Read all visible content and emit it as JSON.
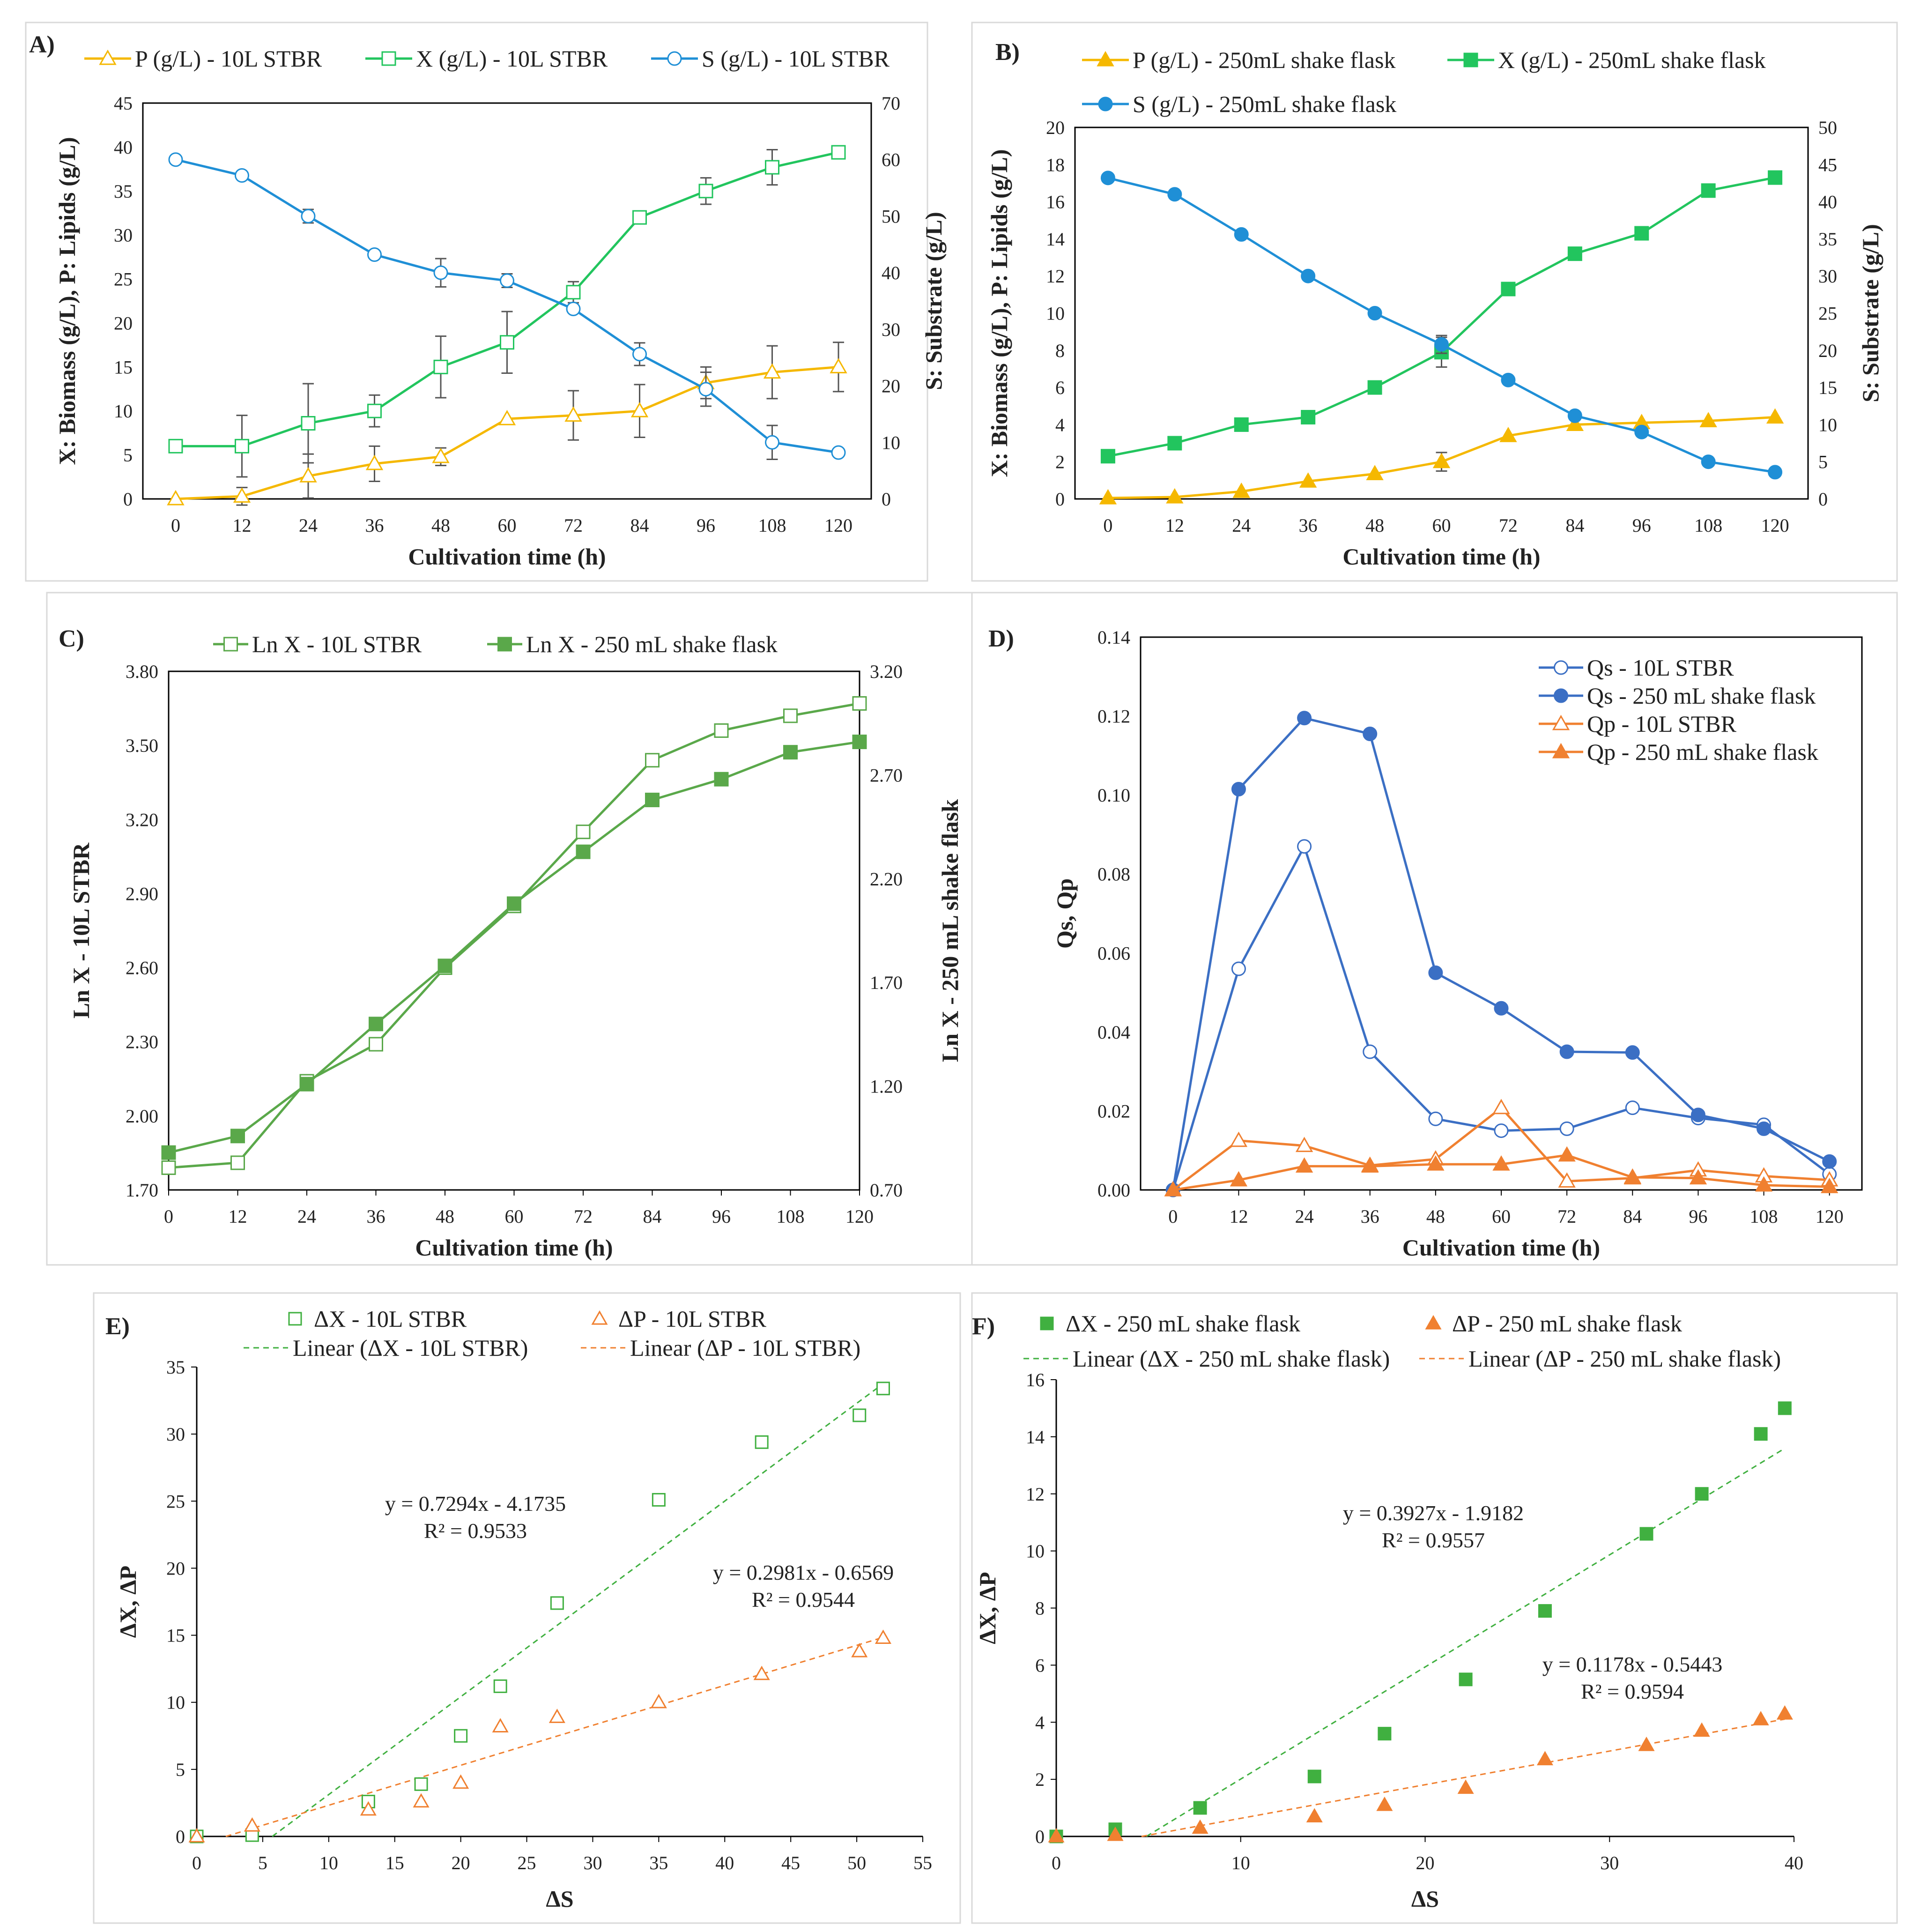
{
  "colors": {
    "p": "#f5b800",
    "x": "#22c55e",
    "s": "#1f8fd6",
    "x_c": "#5aa84a",
    "qs": "#3b6fc4",
    "qp": "#f08030",
    "dx": "#40b040",
    "dp": "#f08030",
    "err": "#555555"
  },
  "chart_data": [
    {
      "id": "A",
      "label": "A)",
      "type": "line",
      "x": [
        0,
        12,
        24,
        36,
        48,
        60,
        72,
        84,
        96,
        108,
        120
      ],
      "xlabel": "Cultivation time (h)",
      "ylabel": "X: Biomass (g/L), P: Lipids (g/L)",
      "y2label": "S: Substrate (g/L)",
      "ylim": [
        0,
        45
      ],
      "yticks": [
        0,
        5,
        10,
        15,
        20,
        25,
        30,
        35,
        40,
        45
      ],
      "y2lim": [
        0,
        70
      ],
      "y2ticks": [
        0,
        10,
        20,
        30,
        40,
        50,
        60,
        70
      ],
      "series": [
        {
          "name": "P (g/L) - 10L STBR",
          "axis": "left",
          "marker": "triangle-open",
          "color_key": "p",
          "values": [
            0,
            0.3,
            2.6,
            4.0,
            4.8,
            9.1,
            9.5,
            10.0,
            13.2,
            14.4,
            15.0
          ],
          "errors": [
            0,
            1.0,
            2.5,
            2.0,
            1.0,
            0,
            2.8,
            3.0,
            1.8,
            3.0,
            2.8
          ]
        },
        {
          "name": "X (g/L) - 10L STBR",
          "axis": "left",
          "marker": "square-open",
          "color_key": "x",
          "values": [
            6.0,
            6.0,
            8.6,
            10.0,
            15.0,
            17.8,
            23.5,
            32.0,
            35.0,
            37.7,
            39.4
          ],
          "errors": [
            0,
            3.5,
            4.5,
            1.8,
            3.5,
            3.5,
            1.2,
            0,
            1.5,
            2.0,
            0
          ]
        },
        {
          "name": "S (g/L) - 10L STBR",
          "axis": "right",
          "marker": "circle-open",
          "color_key": "s",
          "values": [
            60.0,
            57.2,
            50.0,
            43.2,
            40.0,
            38.6,
            33.6,
            25.6,
            19.4,
            10.0,
            8.2
          ],
          "errors": [
            0,
            0.6,
            1.2,
            0,
            2.5,
            1.2,
            0,
            2.0,
            3.0,
            3.0,
            0
          ]
        }
      ]
    },
    {
      "id": "B",
      "label": "B)",
      "type": "line",
      "x": [
        0,
        12,
        24,
        36,
        48,
        60,
        72,
        84,
        96,
        108,
        120
      ],
      "xlabel": "Cultivation time (h)",
      "ylabel": "X: Biomass (g/L), P: Lipids (g/L)",
      "y2label": "S: Substrate (g/L)",
      "ylim": [
        0,
        20
      ],
      "yticks": [
        0,
        2,
        4,
        6,
        8,
        10,
        12,
        14,
        16,
        18,
        20
      ],
      "y2lim": [
        0,
        50
      ],
      "y2ticks": [
        0,
        5,
        10,
        15,
        20,
        25,
        30,
        35,
        40,
        45,
        50
      ],
      "series": [
        {
          "name": "P (g/L) - 250mL shake flask",
          "axis": "left",
          "marker": "triangle-filled",
          "color_key": "p",
          "values": [
            0.05,
            0.1,
            0.4,
            0.95,
            1.35,
            2.0,
            3.4,
            4.0,
            4.1,
            4.2,
            4.4
          ],
          "errors": [
            0,
            0,
            0,
            0,
            0,
            0.5,
            0,
            0,
            0,
            0,
            0
          ]
        },
        {
          "name": "X (g/L) -  250mL shake flask",
          "axis": "left",
          "marker": "square-filled",
          "color_key": "x",
          "values": [
            2.3,
            3.0,
            4.0,
            4.4,
            6.0,
            7.9,
            11.3,
            13.2,
            14.3,
            16.6,
            17.3
          ],
          "errors": [
            0,
            0,
            0,
            0,
            0,
            0.8,
            0,
            0,
            0,
            0,
            0
          ]
        },
        {
          "name": "S (g/L) -  250mL shake flask",
          "axis": "right",
          "marker": "circle-filled",
          "color_key": "s",
          "values": [
            43.2,
            41.0,
            35.6,
            30.0,
            25.0,
            20.8,
            16.0,
            11.2,
            9.0,
            5.0,
            3.6
          ],
          "errors": [
            0,
            0,
            0,
            0,
            0,
            1.2,
            0,
            0,
            0,
            0,
            0
          ]
        }
      ]
    },
    {
      "id": "C",
      "label": "C)",
      "type": "line",
      "x": [
        0,
        12,
        24,
        36,
        48,
        60,
        72,
        84,
        96,
        108,
        120
      ],
      "xlabel": "Cultivation time (h)",
      "ylabel": "Ln X - 10L STBR",
      "y2label": "Ln X - 250 mL shake flask",
      "ylim": [
        1.7,
        3.8
      ],
      "yticks": [
        "1.70",
        "2.00",
        "2.30",
        "2.60",
        "2.90",
        "3.20",
        "3.50",
        "3.80"
      ],
      "y2lim": [
        0.7,
        3.2
      ],
      "y2ticks": [
        "0.70",
        "1.20",
        "1.70",
        "2.20",
        "2.70",
        "3.20"
      ],
      "series": [
        {
          "name": "Ln X - 10L STBR",
          "axis": "left",
          "marker": "square-open",
          "color_key": "x_c",
          "values": [
            1.79,
            1.81,
            2.14,
            2.29,
            2.6,
            2.85,
            3.15,
            3.44,
            3.56,
            3.62,
            3.67
          ]
        },
        {
          "name": "Ln X - 250 mL shake flask",
          "axis": "right",
          "marker": "square-filled",
          "color_key": "x_c",
          "values": [
            0.88,
            0.96,
            1.21,
            1.5,
            1.78,
            2.08,
            2.33,
            2.58,
            2.68,
            2.81,
            2.86
          ]
        }
      ]
    },
    {
      "id": "D",
      "label": "D)",
      "type": "line",
      "x": [
        0,
        12,
        24,
        36,
        48,
        60,
        72,
        84,
        96,
        108,
        120
      ],
      "xlabel": "Cultivation time (h)",
      "ylabel": "Qs, Qp",
      "ylim": [
        0,
        0.14
      ],
      "yticks": [
        "0.00",
        "0.02",
        "0.04",
        "0.06",
        "0.08",
        "0.10",
        "0.12",
        "0.14"
      ],
      "series": [
        {
          "name": "Qs - 10L STBR",
          "axis": "left",
          "marker": "circle-open",
          "color_key": "qs",
          "values": [
            0,
            0.056,
            0.087,
            0.035,
            0.018,
            0.015,
            0.0155,
            0.0208,
            0.0182,
            0.0165,
            0.004
          ]
        },
        {
          "name": "Qs - 250 mL shake flask",
          "axis": "left",
          "marker": "circle-filled",
          "color_key": "qs",
          "values": [
            0,
            0.1015,
            0.1195,
            0.1155,
            0.055,
            0.046,
            0.035,
            0.0348,
            0.019,
            0.0155,
            0.0072
          ]
        },
        {
          "name": "Qp - 10L STBR",
          "axis": "left",
          "marker": "triangle-open",
          "color_key": "qp",
          "values": [
            0,
            0.0125,
            0.0112,
            0.0062,
            0.0078,
            0.0208,
            0.0022,
            0.003,
            0.005,
            0.0035,
            0.0025
          ]
        },
        {
          "name": "Qp - 250 mL shake flask",
          "axis": "left",
          "marker": "triangle-filled",
          "color_key": "qp",
          "values": [
            0,
            0.0025,
            0.006,
            0.006,
            0.0065,
            0.0065,
            0.0088,
            0.0032,
            0.003,
            0.0012,
            0.0008
          ]
        }
      ]
    },
    {
      "id": "E",
      "label": "E)",
      "type": "scatter",
      "xlabel": "ΔS",
      "ylabel": "ΔX, ΔP",
      "xlim": [
        0,
        55
      ],
      "xticks": [
        0,
        5,
        10,
        15,
        20,
        25,
        30,
        35,
        40,
        45,
        50,
        55
      ],
      "ylim": [
        0,
        35
      ],
      "yticks": [
        0,
        5,
        10,
        15,
        20,
        25,
        30,
        35
      ],
      "series": [
        {
          "name": "ΔX - 10L STBR",
          "marker": "square-open",
          "color_key": "dx",
          "x": [
            0,
            4.2,
            13,
            17,
            20,
            23,
            27.3,
            35,
            42.8,
            50.2,
            52
          ],
          "y": [
            0,
            0.1,
            2.6,
            3.9,
            7.5,
            11.2,
            17.4,
            25.1,
            29.4,
            31.4,
            33.4
          ]
        },
        {
          "name": "ΔP - 10L STBR",
          "marker": "triangle-open",
          "color_key": "dp",
          "x": [
            0,
            4.2,
            13,
            17,
            20,
            23,
            27.3,
            35,
            42.8,
            50.2,
            52
          ],
          "y": [
            0,
            0.8,
            2.0,
            2.6,
            4.0,
            8.2,
            8.9,
            10.0,
            12.1,
            13.8,
            14.8
          ]
        }
      ],
      "trendlines": [
        {
          "name": "Linear (ΔX - 10L STBR)",
          "slope": 0.7294,
          "intercept": -4.1735,
          "color_key": "dx",
          "equation": "y = 0.7294x - 4.1735",
          "r2": "R² = 0.9533"
        },
        {
          "name": "Linear (ΔP - 10L STBR)",
          "slope": 0.2981,
          "intercept": -0.6569,
          "color_key": "dp",
          "equation": "y = 0.2981x - 0.6569",
          "r2": "R² = 0.9544"
        }
      ]
    },
    {
      "id": "F",
      "label": "F)",
      "type": "scatter",
      "xlabel": "ΔS",
      "ylabel": "ΔX, ΔP",
      "xlim": [
        0,
        40
      ],
      "xticks": [
        0,
        10,
        20,
        30,
        40
      ],
      "ylim": [
        0,
        16
      ],
      "yticks": [
        0,
        2,
        4,
        6,
        8,
        10,
        12,
        14,
        16
      ],
      "series": [
        {
          "name": "ΔX - 250 mL shake flask",
          "marker": "square-filled",
          "color_key": "dx",
          "x": [
            0,
            3.2,
            7.8,
            14,
            17.8,
            22.2,
            26.5,
            32,
            35,
            38.2,
            39.5
          ],
          "y": [
            0,
            0.25,
            1.0,
            2.1,
            3.6,
            5.5,
            7.9,
            10.6,
            12.0,
            14.1,
            15.0
          ]
        },
        {
          "name": "ΔP - 250 mL shake flask",
          "marker": "triangle-filled",
          "color_key": "dp",
          "x": [
            0,
            3.2,
            7.8,
            14,
            17.8,
            22.2,
            26.5,
            32,
            35,
            38.2,
            39.5
          ],
          "y": [
            0,
            0.05,
            0.3,
            0.7,
            1.1,
            1.7,
            2.7,
            3.2,
            3.7,
            4.1,
            4.3
          ]
        }
      ],
      "trendlines": [
        {
          "name": "Linear (ΔX - 250 mL shake flask)",
          "slope": 0.3927,
          "intercept": -1.9182,
          "color_key": "dx",
          "equation": "y = 0.3927x - 1.9182",
          "r2": "R² = 0.9557"
        },
        {
          "name": "Linear (ΔP - 250 mL shake flask)",
          "slope": 0.1178,
          "intercept": -0.5443,
          "color_key": "dp",
          "equation": "y = 0.1178x - 0.5443",
          "r2": "R² = 0.9594"
        }
      ]
    }
  ]
}
